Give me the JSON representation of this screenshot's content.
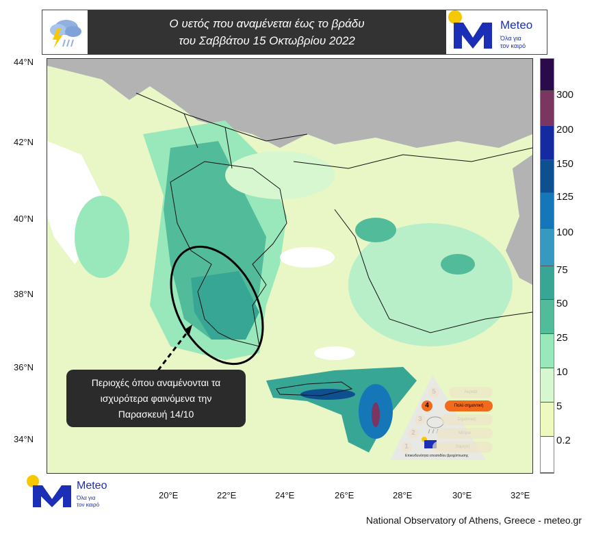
{
  "header": {
    "title_line1": "Ο υετός που αναμένεται έως το βράδυ",
    "title_line2": "του Σαββάτου 15 Οκτωβρίου 2022",
    "weather_icon": "cloud-rain-lightning-icon"
  },
  "logo": {
    "name": "Meteo",
    "tagline_line1": "Όλα για",
    "tagline_line2": "τον καιρό",
    "brand_color": "#1a2fb5",
    "sun_color": "#f5c800"
  },
  "map": {
    "lat_labels": [
      "44°N",
      "42°N",
      "40°N",
      "38°N",
      "36°N",
      "34°N"
    ],
    "lon_labels": [
      "20°E",
      "22°E",
      "24°E",
      "26°E",
      "28°E",
      "30°E",
      "32°E"
    ]
  },
  "colorbar": {
    "labels": [
      "300",
      "200",
      "150",
      "125",
      "100",
      "75",
      "50",
      "25",
      "10",
      "5",
      "0.2"
    ],
    "colors": [
      "#2a0a4a",
      "#7a3560",
      "#1529a0",
      "#0d4f8f",
      "#1577b8",
      "#3798c0",
      "#38a694",
      "#52bb9a",
      "#98e8bc",
      "#d6f7d0",
      "#eef9c0",
      "#ffffff"
    ]
  },
  "callout": {
    "line1": "Περιοχές όπου αναμένονται τα",
    "line2": "ισχυρότερα φαινόμενα την",
    "line3": "Παρασκευή 14/10"
  },
  "severity": {
    "levels": [
      {
        "num": "5",
        "label": "Ακραία"
      },
      {
        "num": "4",
        "label": "Πολύ σημαντική",
        "active": true
      },
      {
        "num": "3",
        "label": "Σημαντική"
      },
      {
        "num": "2",
        "label": "Μέτρια"
      },
      {
        "num": "1",
        "label": "Χαμηλή"
      }
    ],
    "caption": "Επικινδυνότητα επεισοδίου βροχόπτωσης",
    "active_color": "#f26a1b"
  },
  "footer": {
    "credit": "National Observatory of Athens, Greece - meteo.gr"
  }
}
